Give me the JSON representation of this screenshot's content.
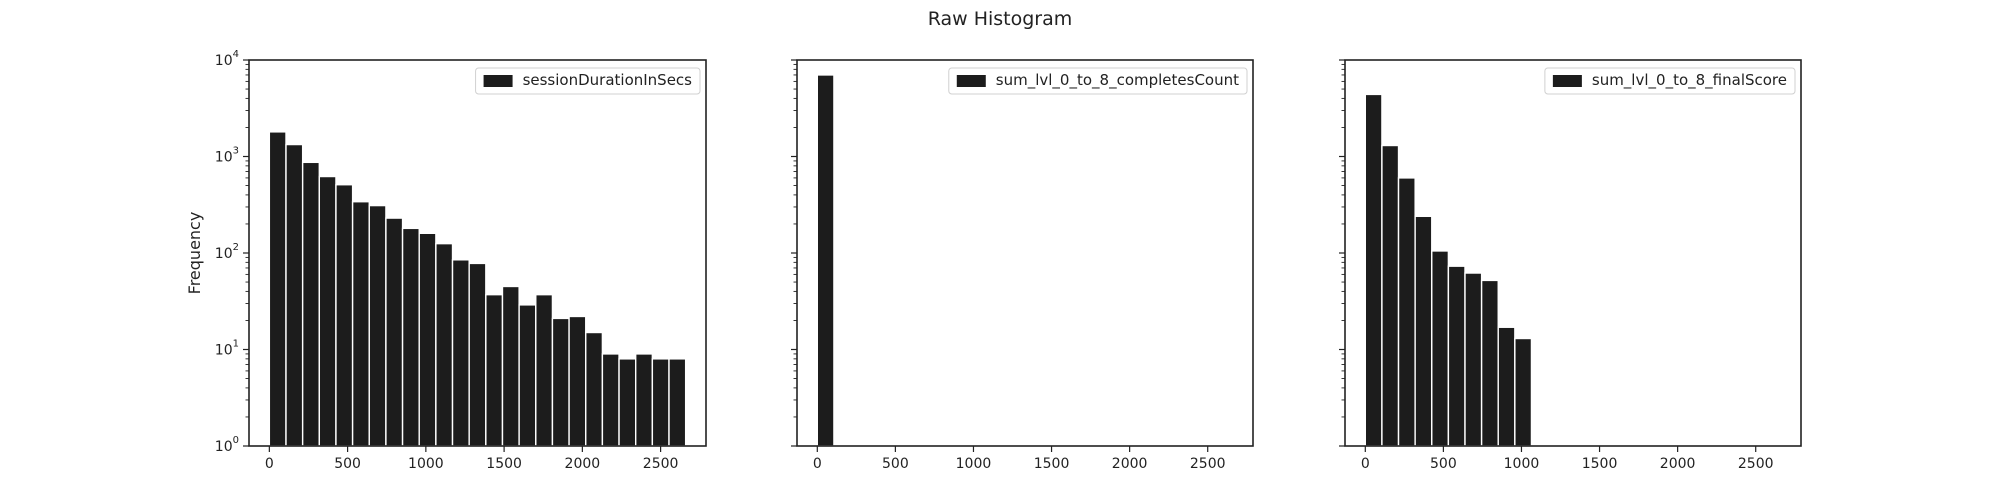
{
  "figure": {
    "title": "Raw Histogram",
    "bar_color": "#1c1c1c",
    "edge_color": "#ffffff",
    "frame_color": "#222222",
    "background": "#ffffff"
  },
  "chart_data": [
    {
      "type": "bar",
      "series": [
        {
          "name": "sessionDurationInSecs",
          "values": [
            1800,
            1330,
            870,
            620,
            510,
            340,
            310,
            230,
            180,
            160,
            125,
            85,
            78,
            37,
            45,
            29,
            37,
            21,
            22,
            15,
            9,
            8,
            9,
            8,
            8
          ]
        }
      ],
      "bin_edges": [
        0,
        106.4,
        212.8,
        319.2,
        425.6,
        532,
        638.4,
        744.8,
        851.2,
        957.6,
        1064,
        1170.4,
        1276.8,
        1383.2,
        1489.6,
        1596,
        1702.4,
        1808.8,
        1915.2,
        2021.6,
        2128,
        2234.4,
        2340.8,
        2447.2,
        2553.6,
        2660
      ],
      "xlabel": "",
      "ylabel": "Frequency",
      "xlim": [
        -130,
        2790
      ],
      "ylim": [
        1,
        10000
      ],
      "yscale": "log",
      "xticks": [
        "0",
        "500",
        "1000",
        "1500",
        "2000",
        "2500"
      ],
      "yticks": [
        {
          "value": 1,
          "base": "10",
          "exp": "0"
        },
        {
          "value": 10,
          "base": "10",
          "exp": "1"
        },
        {
          "value": 100,
          "base": "10",
          "exp": "2"
        },
        {
          "value": 1000,
          "base": "10",
          "exp": "3"
        },
        {
          "value": 10000,
          "base": "10",
          "exp": "4"
        }
      ],
      "legend": "top-right"
    },
    {
      "type": "bar",
      "series": [
        {
          "name": "sum_lvl_0_to_8_completesCount",
          "values": [
            7000
          ]
        }
      ],
      "bin_edges": [
        0,
        106.4
      ],
      "xlabel": "",
      "ylabel": "",
      "xlim": [
        -130,
        2790
      ],
      "ylim": [
        1,
        10000
      ],
      "yscale": "log",
      "xticks": [
        "0",
        "500",
        "1000",
        "1500",
        "2000",
        "2500"
      ],
      "yticks": [],
      "legend": "top-right"
    },
    {
      "type": "bar",
      "series": [
        {
          "name": "sum_lvl_0_to_8_finalScore",
          "values": [
            4400,
            1300,
            600,
            240,
            105,
            73,
            62,
            52,
            17,
            13
          ]
        }
      ],
      "bin_edges": [
        0,
        106.4,
        212.8,
        319.2,
        425.6,
        532,
        638.4,
        744.8,
        851.2,
        957.6,
        1064
      ],
      "xlabel": "",
      "ylabel": "",
      "xlim": [
        -130,
        2790
      ],
      "ylim": [
        1,
        10000
      ],
      "yscale": "log",
      "xticks": [
        "0",
        "500",
        "1000",
        "1500",
        "2000",
        "2500"
      ],
      "yticks": [],
      "legend": "top-right"
    }
  ]
}
